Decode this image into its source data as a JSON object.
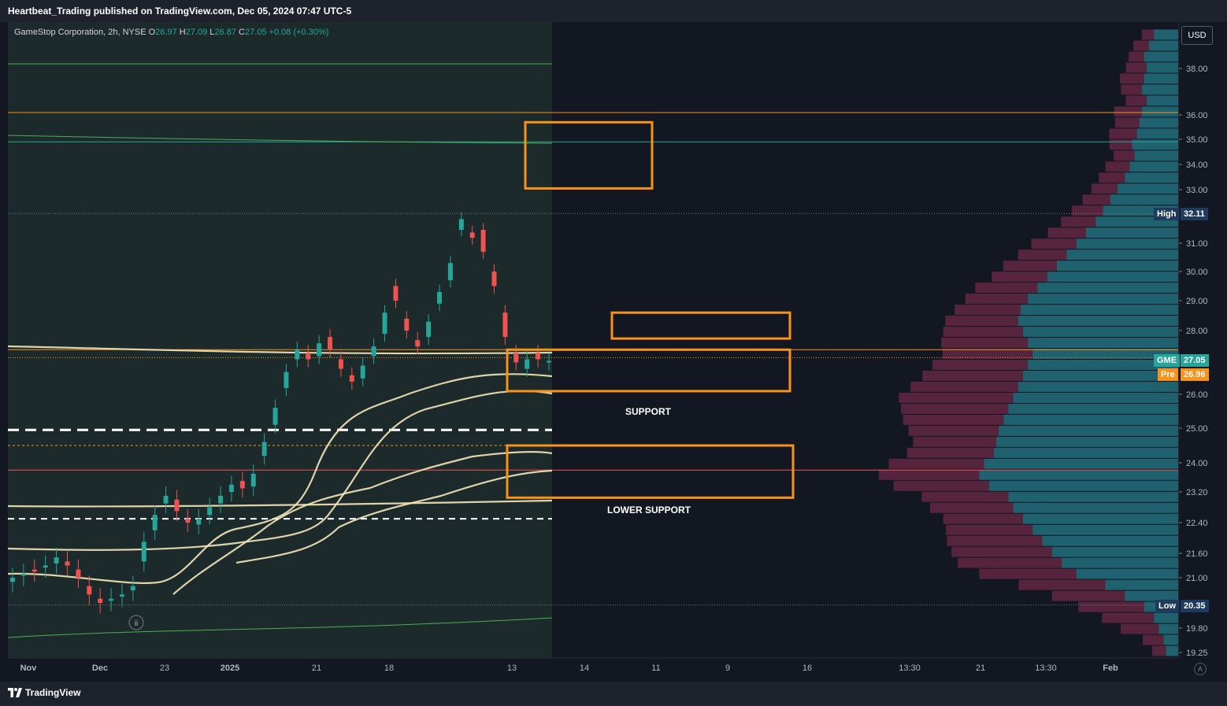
{
  "header": {
    "published": "Heartbeat_Trading published on TradingView.com, Dec 05, 2024 07:47 UTC-5"
  },
  "legend": {
    "symbol": "GameStop Corporation, 2h, NYSE",
    "o_label": "O",
    "o_value": "26.97",
    "h_label": "H",
    "h_value": "27.09",
    "l_label": "L",
    "l_value": "26.87",
    "c_label": "C",
    "c_value": "27.05",
    "change": "+0.08 (+0.30%)"
  },
  "currency_button": "USD",
  "branding": "TradingView",
  "auto_button": "A",
  "annotations": {
    "support": "SUPPORT",
    "lower_support": "LOWER SUPPORT"
  },
  "price_tags": {
    "high_label": "High",
    "high_value": "32.11",
    "low_label": "Low",
    "low_value": "20.35",
    "last_label": "GME",
    "last_value": "27.05",
    "pre_label": "Pre",
    "pre_value": "26.96"
  },
  "event_marker": "ii",
  "colors": {
    "background": "#131722",
    "session_shade": "#1c2a2c",
    "up": "#26a69a",
    "down": "#ef5350",
    "zone": "#f7931a",
    "vwap": "#f5e6b8",
    "vp_up": "#2a9fae",
    "vp_down": "#a8365f"
  },
  "chart_data": {
    "type": "line",
    "title": "GameStop Corporation, 2h, NYSE",
    "y_axis": {
      "ticks": [
        "38.00",
        "36.00",
        "35.00",
        "34.00",
        "33.00",
        "31.00",
        "30.00",
        "29.00",
        "28.00",
        "26.00",
        "25.00",
        "24.00",
        "23.20",
        "22.40",
        "21.60",
        "21.00",
        "19.80",
        "19.25"
      ]
    },
    "x_axis": {
      "ticks": [
        "14",
        "21",
        "13:30",
        "Nov",
        "11",
        "18",
        "Dec",
        "9",
        "16",
        "23",
        "2025",
        "13",
        "21",
        "13:30",
        "Feb"
      ]
    },
    "price_path": [
      [
        20.9,
        21.0
      ],
      [
        21.05,
        21.1
      ],
      [
        21.2,
        21.15
      ],
      [
        21.25,
        21.3
      ],
      [
        21.35,
        21.5
      ],
      [
        21.4,
        21.3
      ],
      [
        21.2,
        21.0
      ],
      [
        20.8,
        20.6
      ],
      [
        20.5,
        20.4
      ],
      [
        20.45,
        20.5
      ],
      [
        20.55,
        20.6
      ],
      [
        20.7,
        20.8
      ],
      [
        21.4,
        21.9
      ],
      [
        22.2,
        22.6
      ],
      [
        22.9,
        23.1
      ],
      [
        23.0,
        22.7
      ],
      [
        22.5,
        22.4
      ],
      [
        22.35,
        22.5
      ],
      [
        22.6,
        22.8
      ],
      [
        22.9,
        23.1
      ],
      [
        23.2,
        23.4
      ],
      [
        23.5,
        23.3
      ],
      [
        23.35,
        23.7
      ],
      [
        24.2,
        24.6
      ],
      [
        25.1,
        25.6
      ],
      [
        26.2,
        26.7
      ],
      [
        27.1,
        27.4
      ],
      [
        27.3,
        27.1
      ],
      [
        27.2,
        27.6
      ],
      [
        27.8,
        27.4
      ],
      [
        27.1,
        26.8
      ],
      [
        26.6,
        26.4
      ],
      [
        26.5,
        26.9
      ],
      [
        27.2,
        27.5
      ],
      [
        27.9,
        28.6
      ],
      [
        29.5,
        29.0
      ],
      [
        28.4,
        28.0
      ],
      [
        27.7,
        27.5
      ],
      [
        27.8,
        28.3
      ],
      [
        28.9,
        29.3
      ],
      [
        29.7,
        30.3
      ],
      [
        31.5,
        31.9
      ],
      [
        31.4,
        31.2
      ],
      [
        31.5,
        30.7
      ],
      [
        30.0,
        29.5
      ],
      [
        28.6,
        27.8
      ],
      [
        27.3,
        27.0
      ],
      [
        26.8,
        27.1
      ],
      [
        27.3,
        27.1
      ],
      [
        27.0,
        27.05
      ]
    ],
    "session_end_date": "Dec 05",
    "levels": [
      38.2,
      36.1,
      34.9,
      32.11,
      27.4,
      27.15,
      24.95,
      24.5,
      23.8,
      22.5,
      20.35
    ],
    "zones": [
      {
        "top": 35.7,
        "bottom": 33.05
      },
      {
        "top": 28.6,
        "bottom": 27.75
      },
      {
        "top": 27.4,
        "bottom": 26.1
      },
      {
        "top": 24.5,
        "bottom": 23.05
      }
    ],
    "volume_profile": [
      [
        0.1,
        0.07
      ],
      [
        0.12,
        0.09
      ],
      [
        0.14,
        0.09
      ],
      [
        0.13,
        0.12
      ],
      [
        0.14,
        0.14
      ],
      [
        0.15,
        0.12
      ],
      [
        0.13,
        0.12
      ],
      [
        0.15,
        0.16
      ],
      [
        0.16,
        0.14
      ],
      [
        0.17,
        0.16
      ],
      [
        0.19,
        0.13
      ],
      [
        0.18,
        0.12
      ],
      [
        0.2,
        0.14
      ],
      [
        0.22,
        0.15
      ],
      [
        0.25,
        0.15
      ],
      [
        0.28,
        0.16
      ],
      [
        0.31,
        0.18
      ],
      [
        0.34,
        0.2
      ],
      [
        0.38,
        0.22
      ],
      [
        0.42,
        0.26
      ],
      [
        0.46,
        0.28
      ],
      [
        0.5,
        0.31
      ],
      [
        0.54,
        0.32
      ],
      [
        0.58,
        0.36
      ],
      [
        0.62,
        0.36
      ],
      [
        0.65,
        0.38
      ],
      [
        0.66,
        0.42
      ],
      [
        0.64,
        0.46
      ],
      [
        0.62,
        0.5
      ],
      [
        0.6,
        0.52
      ],
      [
        0.62,
        0.55
      ],
      [
        0.64,
        0.58
      ],
      [
        0.66,
        0.62
      ],
      [
        0.68,
        0.66
      ],
      [
        0.7,
        0.62
      ],
      [
        0.72,
        0.58
      ],
      [
        0.74,
        0.52
      ],
      [
        0.75,
        0.48
      ],
      [
        0.76,
        0.5
      ],
      [
        0.8,
        0.55
      ],
      [
        0.82,
        0.58
      ],
      [
        0.78,
        0.55
      ],
      [
        0.7,
        0.5
      ],
      [
        0.68,
        0.48
      ],
      [
        0.64,
        0.46
      ],
      [
        0.6,
        0.5
      ],
      [
        0.56,
        0.55
      ],
      [
        0.52,
        0.58
      ],
      [
        0.48,
        0.6
      ],
      [
        0.42,
        0.56
      ],
      [
        0.3,
        0.5
      ],
      [
        0.22,
        0.42
      ],
      [
        0.14,
        0.38
      ],
      [
        0.1,
        0.3
      ],
      [
        0.08,
        0.22
      ],
      [
        0.06,
        0.12
      ],
      [
        0.05,
        0.08
      ]
    ]
  }
}
